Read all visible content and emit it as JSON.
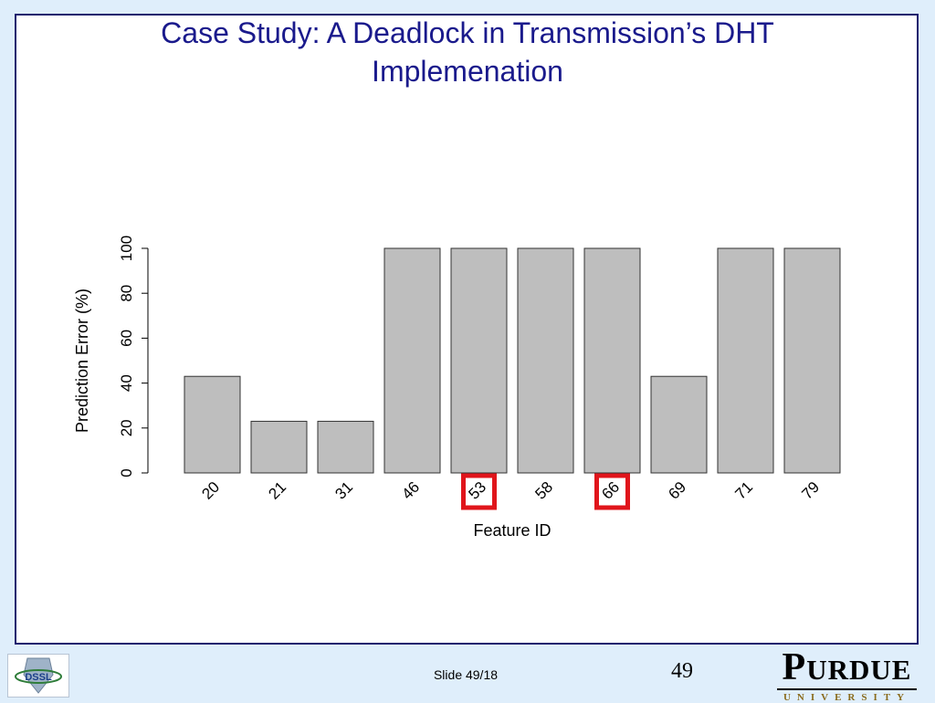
{
  "slide": {
    "title_line1": "Case Study: A Deadlock in Transmission’s DHT",
    "title_line2": "Implemenation",
    "footer_text": "Slide 49/18",
    "page_number": "49",
    "left_logo_text": "DSSL",
    "right_logo_text": "PURDUE",
    "right_logo_subtext": "UNIVERSITY"
  },
  "colors": {
    "title": "#1a1a8c",
    "frame_border": "#1a1a6e",
    "bar_fill": "#bebebe",
    "bar_stroke": "#333333",
    "highlight": "#e0151b",
    "background": "#dfeefb"
  },
  "chart_data": {
    "type": "bar",
    "categories": [
      "20",
      "21",
      "31",
      "46",
      "53",
      "58",
      "66",
      "69",
      "71",
      "79"
    ],
    "values": [
      43,
      23,
      23,
      100,
      100,
      100,
      100,
      43,
      100,
      100
    ],
    "xlabel": "Feature ID",
    "ylabel": "Prediction Error (%)",
    "ylim": [
      0,
      100
    ],
    "yticks": [
      0,
      20,
      40,
      60,
      80,
      100
    ],
    "grid": false,
    "legend": "none",
    "highlighted_categories": [
      "53",
      "66"
    ]
  }
}
